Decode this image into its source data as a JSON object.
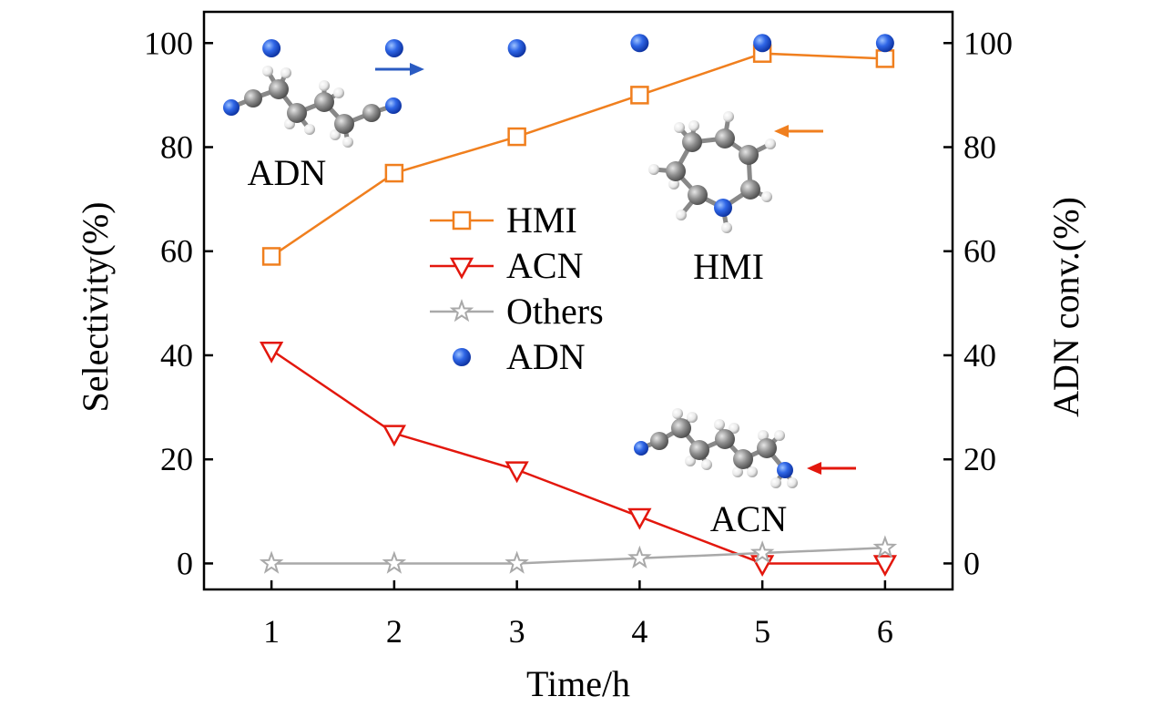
{
  "chart_data": {
    "type": "line",
    "xlabel": "Time/h",
    "ylabel": "Selectivity(%)",
    "y2label": "ADN conv.(%)",
    "x": [
      1,
      2,
      3,
      4,
      5,
      6
    ],
    "xlim": [
      0.45,
      6.55
    ],
    "ylim": [
      -5,
      106
    ],
    "y2lim": [
      -5,
      106
    ],
    "xticks": [
      "1",
      "2",
      "3",
      "4",
      "5",
      "6"
    ],
    "yticks": [
      "0",
      "20",
      "40",
      "60",
      "80",
      "100"
    ],
    "y2ticks": [
      "0",
      "20",
      "40",
      "60",
      "80",
      "100"
    ],
    "grid": false,
    "legend": "center",
    "series": [
      {
        "name": "HMI",
        "axis": "left",
        "marker": "square-open",
        "color": "#f07f1e",
        "values": [
          59,
          75,
          82,
          90,
          98,
          97
        ]
      },
      {
        "name": "ACN",
        "axis": "left",
        "marker": "triangle-down-open",
        "color": "#e3170d",
        "values": [
          41,
          25,
          18,
          9,
          0,
          0
        ]
      },
      {
        "name": "Others",
        "axis": "left",
        "marker": "star-open",
        "color": "#a9a9a9",
        "values": [
          0,
          0,
          0,
          1,
          2,
          3
        ]
      },
      {
        "name": "ADN",
        "axis": "right",
        "marker": "sphere",
        "color": "#1f4fd1",
        "values": [
          99,
          99,
          99,
          100,
          100,
          100
        ]
      }
    ],
    "annotations": [
      {
        "text": "ADN",
        "molecule": "adiponitrile",
        "arrow_color": "#2a5bc2"
      },
      {
        "text": "HMI",
        "molecule": "hexamethyleneimine",
        "arrow_color": "#f07f1e"
      },
      {
        "text": "ACN",
        "molecule": "aminocapronitrile",
        "arrow_color": "#e3170d"
      }
    ]
  }
}
